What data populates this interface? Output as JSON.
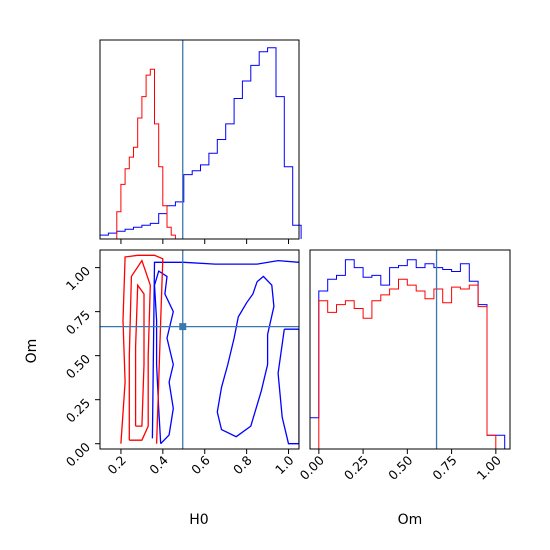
{
  "chart_data": [
    {
      "panel": "H0 marginal",
      "type": "histogram",
      "x_range": [
        0.1,
        1.05
      ],
      "truth": 0.495,
      "blue": {
        "color": "#0000ff",
        "edges": [
          0.1,
          0.14,
          0.18,
          0.22,
          0.26,
          0.3,
          0.34,
          0.38,
          0.42,
          0.46,
          0.5,
          0.54,
          0.58,
          0.62,
          0.66,
          0.7,
          0.74,
          0.78,
          0.82,
          0.86,
          0.9,
          0.94,
          0.98,
          1.02,
          1.06
        ],
        "values": [
          0.02,
          0.03,
          0.04,
          0.05,
          0.06,
          0.07,
          0.08,
          0.13,
          0.17,
          0.19,
          0.33,
          0.35,
          0.38,
          0.44,
          0.51,
          0.59,
          0.72,
          0.81,
          0.89,
          0.96,
          0.98,
          0.73,
          0.37,
          0.07
        ]
      },
      "red": {
        "color": "#ff0000",
        "edges": [
          0.18,
          0.2,
          0.22,
          0.24,
          0.26,
          0.28,
          0.3,
          0.32,
          0.34,
          0.36,
          0.38,
          0.4,
          0.42,
          0.44,
          0.46
        ],
        "values": [
          0.14,
          0.28,
          0.36,
          0.42,
          0.47,
          0.62,
          0.73,
          0.84,
          0.87,
          0.59,
          0.37,
          0.17,
          0.06,
          0.02
        ]
      }
    },
    {
      "panel": "H0 vs Om",
      "type": "contour",
      "x_range": [
        0.1,
        1.05
      ],
      "y_range": [
        -0.03,
        1.1
      ],
      "truth": {
        "x": 0.495,
        "y": 0.665
      },
      "blue_contours": [
        [
          [
            0.35,
            0.03
          ],
          [
            0.36,
            1.03
          ],
          [
            0.5,
            1.03
          ],
          [
            0.65,
            1.02
          ],
          [
            0.85,
            1.02
          ],
          [
            0.95,
            1.04
          ],
          [
            1.05,
            1.03
          ]
        ],
        [
          [
            0.39,
            0.0
          ],
          [
            0.38,
            0.2
          ],
          [
            0.37,
            0.45
          ],
          [
            0.37,
            0.7
          ],
          [
            0.36,
            0.9
          ],
          [
            0.38,
            0.98
          ],
          [
            0.42,
            0.95
          ],
          [
            0.41,
            0.85
          ],
          [
            0.45,
            0.75
          ],
          [
            0.42,
            0.6
          ],
          [
            0.45,
            0.45
          ],
          [
            0.43,
            0.35
          ],
          [
            0.45,
            0.2
          ],
          [
            0.43,
            0.05
          ],
          [
            0.39,
            0.0
          ]
        ],
        [
          [
            0.98,
            0.65
          ],
          [
            0.95,
            0.4
          ],
          [
            0.97,
            0.15
          ],
          [
            1.0,
            0.0
          ],
          [
            1.05,
            0.0
          ],
          [
            1.05,
            0.65
          ],
          [
            0.98,
            0.65
          ]
        ],
        [
          [
            0.85,
            0.92
          ],
          [
            0.88,
            0.95
          ],
          [
            0.92,
            0.9
          ],
          [
            0.93,
            0.78
          ],
          [
            0.9,
            0.62
          ],
          [
            0.9,
            0.45
          ],
          [
            0.87,
            0.3
          ],
          [
            0.82,
            0.1
          ],
          [
            0.75,
            0.04
          ],
          [
            0.68,
            0.08
          ],
          [
            0.66,
            0.18
          ],
          [
            0.68,
            0.32
          ],
          [
            0.71,
            0.45
          ],
          [
            0.74,
            0.6
          ],
          [
            0.76,
            0.72
          ],
          [
            0.8,
            0.8
          ],
          [
            0.83,
            0.85
          ],
          [
            0.85,
            0.92
          ]
        ]
      ],
      "red_contours": [
        [
          [
            0.2,
            0.0
          ],
          [
            0.22,
            0.35
          ],
          [
            0.21,
            0.7
          ],
          [
            0.22,
            1.06
          ],
          [
            0.28,
            1.07
          ],
          [
            0.36,
            1.07
          ],
          [
            0.4,
            1.05
          ],
          [
            0.39,
            0.7
          ],
          [
            0.38,
            0.35
          ],
          [
            0.37,
            0.0
          ]
        ],
        [
          [
            0.24,
            0.02
          ],
          [
            0.24,
            0.5
          ],
          [
            0.25,
            0.95
          ],
          [
            0.3,
            1.04
          ],
          [
            0.34,
            0.9
          ],
          [
            0.33,
            0.5
          ],
          [
            0.33,
            0.1
          ],
          [
            0.3,
            0.02
          ],
          [
            0.24,
            0.02
          ]
        ],
        [
          [
            0.27,
            0.1
          ],
          [
            0.27,
            0.55
          ],
          [
            0.28,
            0.9
          ],
          [
            0.31,
            0.85
          ],
          [
            0.31,
            0.45
          ],
          [
            0.3,
            0.1
          ],
          [
            0.27,
            0.1
          ]
        ]
      ]
    },
    {
      "panel": "Om marginal",
      "type": "histogram",
      "x_range": [
        -0.05,
        1.08
      ],
      "truth": 0.665,
      "blue": {
        "color": "#0000ff",
        "edges": [
          -0.05,
          0.0,
          0.05,
          0.1,
          0.15,
          0.2,
          0.25,
          0.3,
          0.35,
          0.4,
          0.45,
          0.5,
          0.55,
          0.6,
          0.65,
          0.7,
          0.75,
          0.8,
          0.85,
          0.9,
          0.95,
          1.0,
          1.05
        ],
        "values": [
          0.16,
          0.81,
          0.87,
          0.89,
          0.97,
          0.93,
          0.88,
          0.89,
          0.84,
          0.93,
          0.94,
          0.97,
          0.93,
          0.95,
          0.93,
          0.92,
          0.91,
          0.95,
          0.86,
          0.74,
          0.07,
          0.07
        ]
      },
      "red": {
        "color": "#ff0000",
        "edges": [
          0.0,
          0.05,
          0.1,
          0.15,
          0.2,
          0.25,
          0.3,
          0.35,
          0.4,
          0.45,
          0.5,
          0.55,
          0.6,
          0.65,
          0.7,
          0.75,
          0.8,
          0.85,
          0.9,
          0.95,
          1.0
        ],
        "values": [
          0.76,
          0.7,
          0.74,
          0.76,
          0.72,
          0.67,
          0.76,
          0.79,
          0.82,
          0.87,
          0.84,
          0.81,
          0.77,
          0.82,
          0.75,
          0.83,
          0.82,
          0.84,
          0.73,
          0.07
        ]
      }
    }
  ],
  "axes": {
    "h0_ticks": [
      "0.2",
      "0.4",
      "0.6",
      "0.8",
      "1.0"
    ],
    "om_ticks": [
      "0.00",
      "0.25",
      "0.50",
      "0.75",
      "1.00"
    ],
    "h0_tick_values": [
      0.2,
      0.4,
      0.6,
      0.8,
      1.0
    ],
    "om_tick_values": [
      0.0,
      0.25,
      0.5,
      0.75,
      1.0
    ],
    "x_label_h0": "H0",
    "x_label_om": "Om",
    "y_label_om": "Om"
  },
  "colors": {
    "truth": "#3b78b0",
    "blue": "#0000ff",
    "red": "#ff0000",
    "axes": "#000000"
  }
}
